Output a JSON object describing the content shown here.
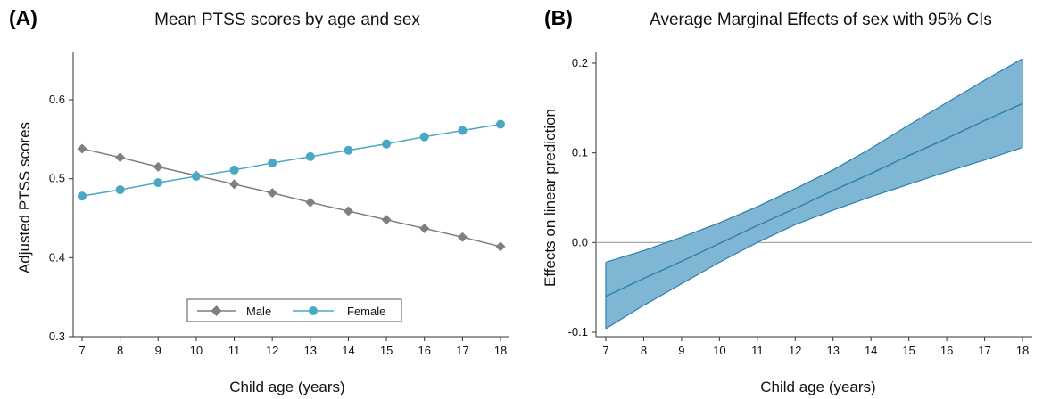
{
  "colors": {
    "male": "#7f7f7f",
    "female": "#4aa8c4",
    "ci_fill": "#7fb6d3",
    "ci_line": "#2c7fae",
    "zero_line": "#9a9a9a"
  },
  "chart_data": [
    {
      "type": "line",
      "panel_label": "(A)",
      "title": "Mean PTSS scores by age and sex",
      "xlabel": "Child age (years)",
      "ylabel": "Adjusted PTSS scores",
      "x": [
        7,
        8,
        9,
        10,
        11,
        12,
        13,
        14,
        15,
        16,
        17,
        18
      ],
      "xlim": [
        7,
        18
      ],
      "ylim": [
        0.3,
        0.65
      ],
      "yticks": [
        0.3,
        0.4,
        0.5,
        0.6
      ],
      "ytick_labels": [
        "0.3",
        "0.4",
        "0.5",
        "0.6"
      ],
      "grid": false,
      "legend_position": "bottom-right",
      "series": [
        {
          "name": "Male",
          "marker": "diamond",
          "values": [
            0.538,
            0.527,
            0.515,
            0.504,
            0.493,
            0.482,
            0.47,
            0.459,
            0.448,
            0.437,
            0.426,
            0.414
          ]
        },
        {
          "name": "Female",
          "marker": "circle",
          "values": [
            0.478,
            0.486,
            0.495,
            0.503,
            0.511,
            0.52,
            0.528,
            0.536,
            0.544,
            0.553,
            0.561,
            0.569
          ]
        }
      ]
    },
    {
      "type": "area",
      "panel_label": "(B)",
      "title": "Average Marginal Effects of sex with 95% CIs",
      "xlabel": "Child age (years)",
      "ylabel": "Effects on linear prediction",
      "x": [
        7,
        8,
        9,
        10,
        11,
        12,
        13,
        14,
        15,
        16,
        17,
        18
      ],
      "xlim": [
        7,
        18
      ],
      "ylim": [
        -0.1,
        0.2
      ],
      "yticks": [
        -0.1,
        0.0,
        0.1,
        0.2
      ],
      "ytick_labels": [
        "-0.1",
        "0.0",
        "0.1",
        "0.2"
      ],
      "grid": false,
      "reference_line": 0,
      "estimate": [
        -0.06,
        -0.04,
        -0.021,
        -0.001,
        0.019,
        0.038,
        0.058,
        0.077,
        0.097,
        0.116,
        0.136,
        0.155
      ],
      "lower": [
        -0.096,
        -0.07,
        -0.046,
        -0.022,
        0.0,
        0.02,
        0.036,
        0.051,
        0.065,
        0.079,
        0.092,
        0.106
      ],
      "upper": [
        -0.022,
        -0.009,
        0.006,
        0.022,
        0.04,
        0.06,
        0.081,
        0.105,
        0.131,
        0.156,
        0.181,
        0.205
      ]
    }
  ]
}
